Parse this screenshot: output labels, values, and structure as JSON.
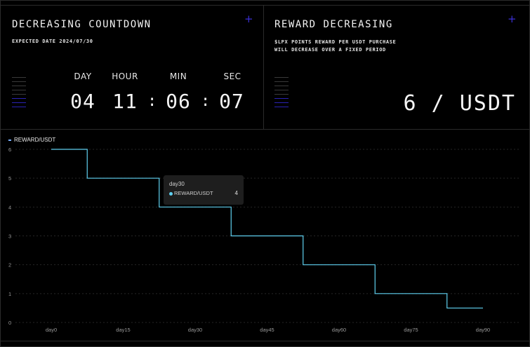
{
  "countdown": {
    "title": "DECREASING COUNTDOWN",
    "subtitle": "EXPECTED DATE 2024/07/30",
    "units": [
      {
        "label": "DAY",
        "value": "04"
      },
      {
        "label": "HOUR",
        "value": "11"
      },
      {
        "label": "MIN",
        "value": "06"
      },
      {
        "label": "SEC",
        "value": "07"
      }
    ],
    "separator": ":",
    "corner_icon": "plus-icon"
  },
  "reward": {
    "title": "REWARD DECREASING",
    "subtitle_line1": "$LPX POINTS REWARD PER USDT PURCHASE",
    "subtitle_line2": "WILL DECREASE OVER A FIXED PERIOD",
    "value": "6 / USDT",
    "corner_icon": "plus-icon"
  },
  "colors": {
    "accent": "#3b2fd6",
    "line": "#5fd0f0",
    "bar_gray": "#4a4a4a",
    "bar_blue": "#3326c9"
  },
  "tooltip": {
    "title": "day30",
    "series": "REWARD/USDT",
    "value": "4"
  },
  "chart_data": {
    "type": "line",
    "step": true,
    "legend": "REWARD/USDT",
    "series": [
      {
        "name": "REWARD/USDT",
        "points": [
          {
            "x": 0,
            "y": 6
          },
          {
            "x": 7.5,
            "y": 6
          },
          {
            "x": 7.5,
            "y": 5
          },
          {
            "x": 22.5,
            "y": 5
          },
          {
            "x": 22.5,
            "y": 4
          },
          {
            "x": 37.5,
            "y": 4
          },
          {
            "x": 37.5,
            "y": 3
          },
          {
            "x": 52.5,
            "y": 3
          },
          {
            "x": 52.5,
            "y": 2
          },
          {
            "x": 67.5,
            "y": 2
          },
          {
            "x": 67.5,
            "y": 1
          },
          {
            "x": 82.5,
            "y": 1
          },
          {
            "x": 82.5,
            "y": 0.5
          },
          {
            "x": 90,
            "y": 0.5
          }
        ]
      }
    ],
    "x_ticks": [
      "day0",
      "day15",
      "day30",
      "day45",
      "day60",
      "day75",
      "day90"
    ],
    "x_tick_values": [
      0,
      15,
      30,
      45,
      60,
      75,
      90
    ],
    "y_ticks": [
      "0",
      "1",
      "2",
      "3",
      "4",
      "5",
      "6"
    ],
    "y_tick_values": [
      0,
      1,
      2,
      3,
      4,
      5,
      6
    ],
    "xlim": [
      0,
      90
    ],
    "ylim": [
      0,
      6
    ],
    "grid": "horizontal dashed"
  }
}
